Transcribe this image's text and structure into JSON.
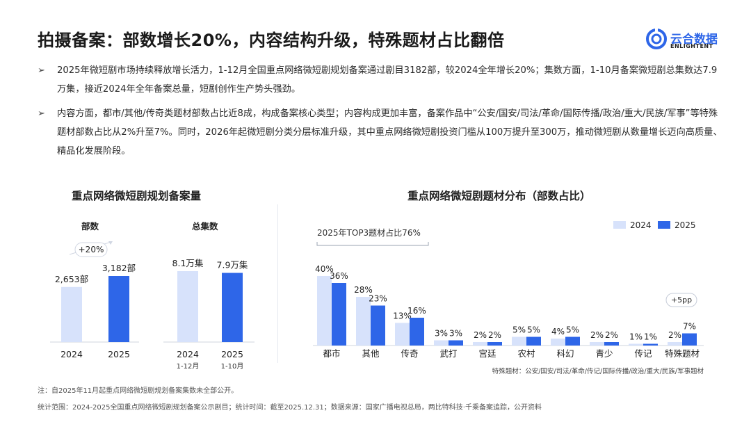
{
  "header": {
    "title": "拍摄备案：部数增长20%，内容结构升级，特殊题材占比翻倍",
    "logo_text": "云合数据",
    "logo_sub": "ENLIGHTENT"
  },
  "bullets": [
    {
      "arrow": "➢",
      "text": "2025年微短剧市场持续释放增长活力，1-12月全国重点网络微短剧规划备案通过剧目3182部，较2024全年增长20%；集数方面，1-10月备案微短剧总集数达7.9万集，接近2024年全年备案总量，短剧创作生产势头强劲。"
    },
    {
      "arrow": "➢",
      "text": "内容方面，都市/其他/传奇类题材部数占比近8成，构成备案核心类型；内容构成更加丰富，备案作品中“公安/国安/司法/革命/国际传播/政治/重大/民族/军事”等特殊题材部数占比从2%升至7%。同时，2026年起微短剧分类分层标准升级，其中重点网络微短剧投资门槛从100万提升至300万，推动微短剧从数量增长迈向高质量、精品化发展阶段。"
    }
  ],
  "left_panel": {
    "title": "重点网络微短剧规划备案量",
    "sub1": "部数",
    "sub2": "总集数",
    "growth_label": "+20%"
  },
  "right_panel": {
    "title": "重点网络微短剧题材分布（部数占比）",
    "top3_label": "2025年TOP3题材占比76%",
    "pp_label": "+5pp",
    "special_note": "特殊题材：公安/国安/司法/革命/传记/国际传播/政治/重大/民族/军事题材"
  },
  "colors": {
    "c2024": "#d7e2fb",
    "c2025": "#2e66e8",
    "accent": "#2e66e8"
  },
  "chart_data": [
    {
      "type": "bar",
      "title": "部数",
      "categories": [
        "2024",
        "2025"
      ],
      "values": [
        2653,
        3182
      ],
      "labels": [
        "2,653部",
        "3,182部"
      ]
    },
    {
      "type": "bar",
      "title": "总集数",
      "categories": [
        "2024",
        "2025"
      ],
      "category_sublabels": [
        "1-12月",
        "1-10月"
      ],
      "values": [
        8.1,
        7.9
      ],
      "labels": [
        "8.1万集",
        "7.9万集"
      ]
    },
    {
      "type": "bar",
      "title": "重点网络微短剧题材分布（部数占比）",
      "categories": [
        "都市",
        "其他",
        "传奇",
        "武打",
        "宫廷",
        "农村",
        "科幻",
        "青少",
        "传记",
        "特殊题材"
      ],
      "series": [
        {
          "name": "2024",
          "values": [
            40,
            28,
            13,
            3,
            2,
            5,
            4,
            2,
            1,
            2
          ]
        },
        {
          "name": "2025",
          "values": [
            36,
            23,
            16,
            3,
            2,
            5,
            5,
            2,
            1,
            7
          ]
        }
      ],
      "unit": "%"
    }
  ],
  "footer": {
    "note1": "注：自2025年11月起重点网络微短剧规划备案集数未全部公开。",
    "note2": "统计范围：2024-2025全国重点网络微短剧规划备案公示剧目；统计时间：截至2025.12.31；数据来源：国家广播电视总局，两比特科技·千乘备案追踪，公开资料"
  }
}
